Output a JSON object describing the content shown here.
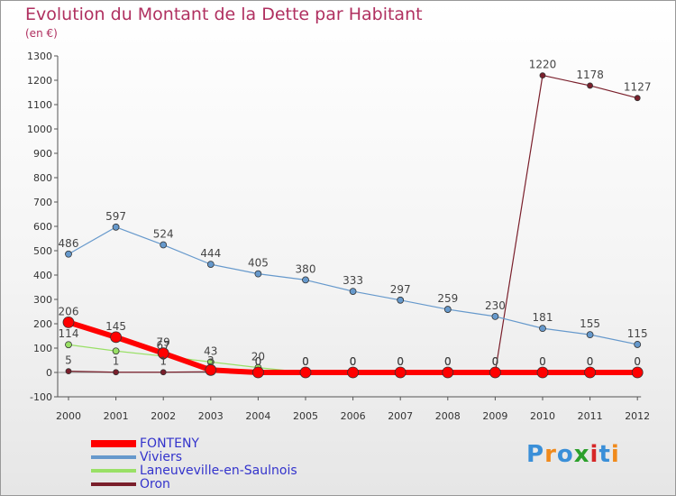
{
  "title": "Evolution du Montant de la Dette par Habitant",
  "unit_label": "(en €)",
  "brand": {
    "text": "Proxiti",
    "colors": [
      "#3a8fd8",
      "#f08a1c",
      "#3a8fd8",
      "#2ca02c",
      "#d62728",
      "#3a8fd8",
      "#f08a1c"
    ]
  },
  "chart_data": {
    "type": "line",
    "title": "Evolution du Montant de la Dette par Habitant",
    "ylabel": "(en €)",
    "ylim": [
      -100,
      1300
    ],
    "yticks": [
      -100,
      0,
      100,
      200,
      300,
      400,
      500,
      600,
      700,
      800,
      900,
      1000,
      1100,
      1200,
      1300
    ],
    "grid": false,
    "legend_position": "bottom-left",
    "x": [
      "2000",
      "2001",
      "2002",
      "2003",
      "2004",
      "2005",
      "2006",
      "2007",
      "2008",
      "2009",
      "2010",
      "2011",
      "2012"
    ],
    "series": [
      {
        "name": "Oron",
        "color": "#7a1f2b",
        "width": 1.2,
        "marker": 3,
        "values": [
          5,
          1,
          1,
          3,
          0,
          0,
          0,
          0,
          0,
          0,
          1220,
          1178,
          1127
        ],
        "labels": [
          "5",
          "1",
          "1",
          "3",
          "0",
          "0",
          "0",
          "0",
          "0",
          "0",
          "1220",
          "1178",
          "1127"
        ]
      },
      {
        "name": "Laneuveville-en-Saulnois",
        "color": "#99e066",
        "width": 1.2,
        "marker": 3.5,
        "values": [
          114,
          88,
          67,
          43,
          20,
          0,
          0,
          0,
          0,
          0,
          0,
          0,
          0
        ],
        "labels": [
          "114",
          "",
          "67",
          "43",
          "20",
          "0",
          "0",
          "0",
          "0",
          "0",
          "0",
          "0",
          "0"
        ]
      },
      {
        "name": "Viviers",
        "color": "#6699cc",
        "width": 1.2,
        "marker": 3.5,
        "values": [
          486,
          597,
          524,
          444,
          405,
          380,
          333,
          297,
          259,
          230,
          181,
          155,
          115
        ],
        "labels": [
          "486",
          "597",
          "524",
          "444",
          "405",
          "380",
          "333",
          "297",
          "259",
          "230",
          "181",
          "155",
          "115"
        ]
      },
      {
        "name": "FONTENY",
        "color": "#ff0000",
        "width": 6,
        "marker": 6,
        "values": [
          206,
          145,
          79,
          10,
          0,
          0,
          0,
          0,
          0,
          0,
          0,
          0,
          0
        ],
        "labels": [
          "206",
          "145",
          "79",
          "",
          "0",
          "0",
          "0",
          "0",
          "0",
          "0",
          "0",
          "0",
          "0"
        ]
      }
    ],
    "legend_order": [
      "FONTENY",
      "Viviers",
      "Laneuveville-en-Saulnois",
      "Oron"
    ]
  }
}
